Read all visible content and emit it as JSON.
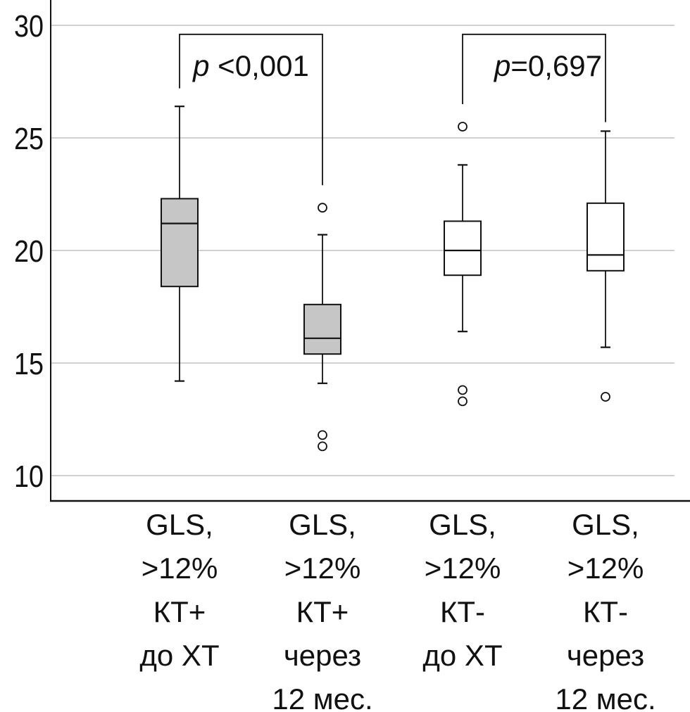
{
  "chart_data": {
    "type": "boxplot",
    "title": "",
    "xlabel": "",
    "ylabel": "",
    "ylim": [
      8.9,
      31.1
    ],
    "yticks": [
      10,
      15,
      20,
      25,
      30
    ],
    "ytick_labels": [
      "10",
      "15",
      "20",
      "25",
      "30"
    ],
    "grid": true,
    "categories": [
      {
        "lines": [
          "GLS,",
          ">12%",
          "КТ+",
          "до ХТ"
        ]
      },
      {
        "lines": [
          "GLS,",
          ">12%",
          "КТ+",
          "через",
          "12 мес."
        ]
      },
      {
        "lines": [
          "GLS,",
          ">12%",
          "КТ-",
          "до ХТ"
        ]
      },
      {
        "lines": [
          "GLS,",
          ">12%",
          "КТ-",
          "через",
          "12 мес."
        ]
      }
    ],
    "boxes": [
      {
        "whisker_low": 14.2,
        "q1": 18.4,
        "median": 21.2,
        "q3": 22.3,
        "whisker_high": 26.4,
        "outliers": [],
        "fill": "#c6c6c6"
      },
      {
        "whisker_low": 14.1,
        "q1": 15.4,
        "median": 16.1,
        "q3": 17.6,
        "whisker_high": 20.7,
        "outliers": [
          21.9,
          11.8,
          11.3
        ],
        "fill": "#c6c6c6"
      },
      {
        "whisker_low": 16.4,
        "q1": 18.9,
        "median": 20.0,
        "q3": 21.3,
        "whisker_high": 23.8,
        "outliers": [
          25.5,
          13.8,
          13.3
        ],
        "fill": "#ffffff"
      },
      {
        "whisker_low": 15.7,
        "q1": 19.1,
        "median": 19.8,
        "q3": 22.1,
        "whisker_high": 25.3,
        "outliers": [
          13.5
        ],
        "fill": "#ffffff"
      }
    ],
    "annotations": [
      {
        "type": "bracket",
        "from": 0,
        "to": 1,
        "top": 29.6,
        "left_end": 27.2,
        "right_end": 22.9,
        "p_prefix": "p",
        "p_suffix": " <0,001"
      },
      {
        "type": "bracket",
        "from": 2,
        "to": 3,
        "top": 29.6,
        "left_end": 26.5,
        "right_end": 25.7,
        "p_prefix": "p",
        "p_suffix": "=0,697"
      }
    ],
    "colors": {
      "axis": "#111111",
      "grid": "#c0c0c0",
      "box_stroke": "#111111"
    }
  }
}
